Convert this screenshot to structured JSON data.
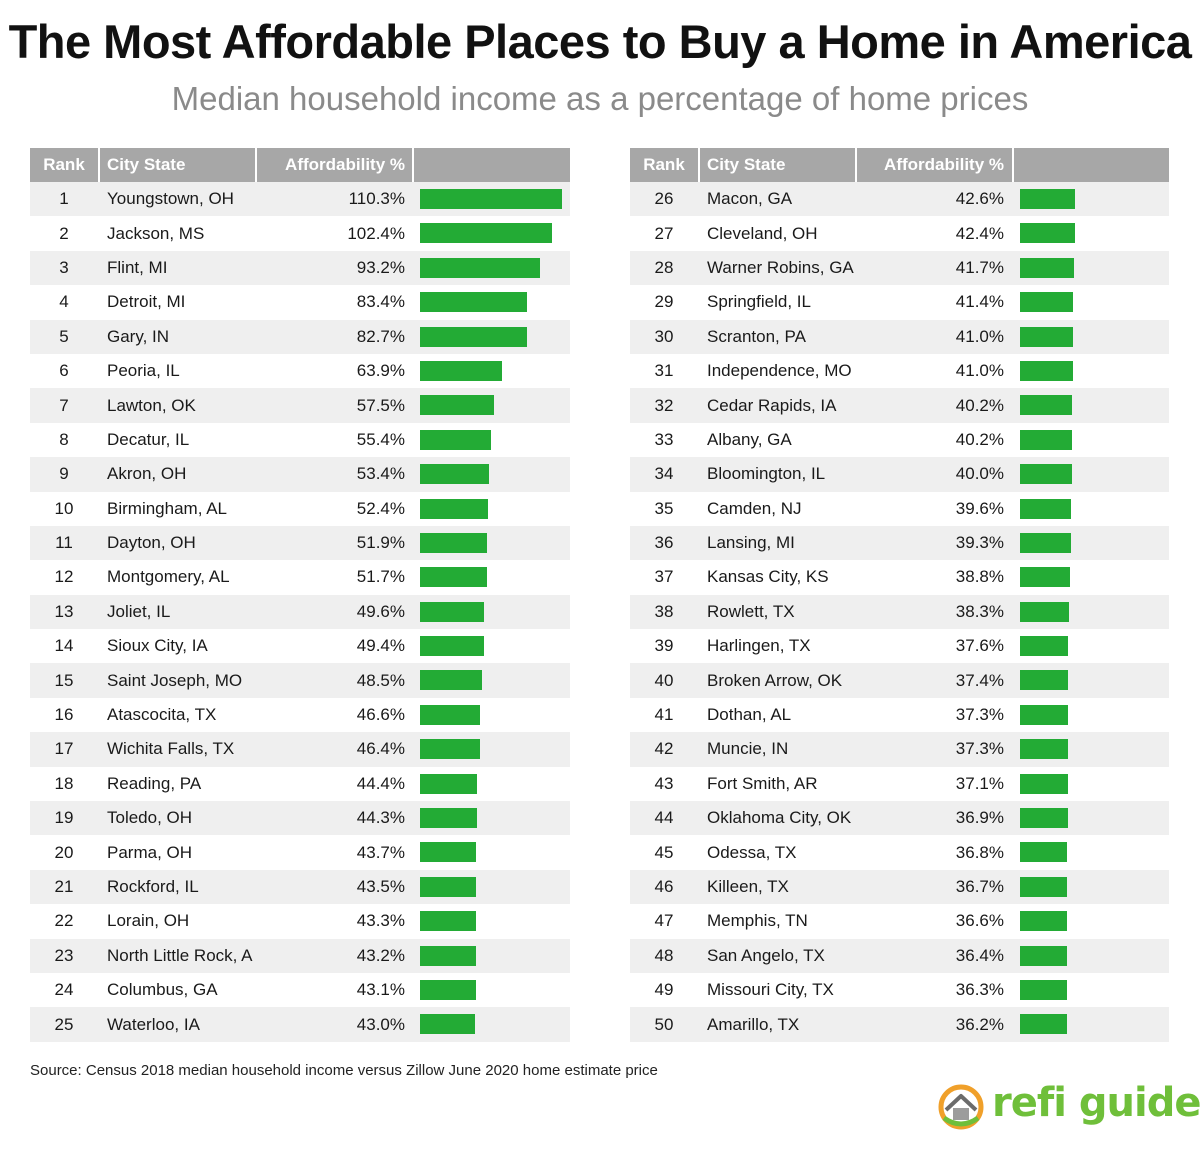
{
  "title": "The Most Affordable Places to Buy a Home in America",
  "subtitle": "Median household income as a percentage of home prices",
  "source": "Source: Census 2018 median household income versus Zillow June 2020 home estimate price",
  "logo_text": "refi guide",
  "colors": {
    "bar": "#23ab35",
    "header": "#a7a7a7",
    "row_alt": "#efefef",
    "logo": "#6fbf3a"
  },
  "chart_data": {
    "type": "bar",
    "title": "The Most Affordable Places to Buy a Home in America",
    "subtitle": "Median household income as a percentage of home prices",
    "columns": [
      "Rank",
      "City State",
      "Affordability %"
    ],
    "x_range": [
      0,
      110.3
    ],
    "rows": [
      {
        "rank": "1",
        "city": "Youngstown, OH",
        "label": "110.3%",
        "value": 110.3
      },
      {
        "rank": "2",
        "city": "Jackson, MS",
        "label": "102.4%",
        "value": 102.4
      },
      {
        "rank": "3",
        "city": "Flint, MI",
        "label": "93.2%",
        "value": 93.2
      },
      {
        "rank": "4",
        "city": "Detroit, MI",
        "label": "83.4%",
        "value": 83.4
      },
      {
        "rank": "5",
        "city": "Gary, IN",
        "label": "82.7%",
        "value": 82.7
      },
      {
        "rank": "6",
        "city": "Peoria, IL",
        "label": "63.9%",
        "value": 63.9
      },
      {
        "rank": "7",
        "city": "Lawton, OK",
        "label": "57.5%",
        "value": 57.5
      },
      {
        "rank": "8",
        "city": "Decatur, IL",
        "label": "55.4%",
        "value": 55.4
      },
      {
        "rank": "9",
        "city": "Akron, OH",
        "label": "53.4%",
        "value": 53.4
      },
      {
        "rank": "10",
        "city": "Birmingham, AL",
        "label": "52.4%",
        "value": 52.4
      },
      {
        "rank": "11",
        "city": "Dayton, OH",
        "label": "51.9%",
        "value": 51.9
      },
      {
        "rank": "12",
        "city": "Montgomery, AL",
        "label": "51.7%",
        "value": 51.7
      },
      {
        "rank": "13",
        "city": "Joliet, IL",
        "label": "49.6%",
        "value": 49.6
      },
      {
        "rank": "14",
        "city": "Sioux City, IA",
        "label": "49.4%",
        "value": 49.4
      },
      {
        "rank": "15",
        "city": "Saint Joseph, MO",
        "label": "48.5%",
        "value": 48.5
      },
      {
        "rank": "16",
        "city": "Atascocita, TX",
        "label": "46.6%",
        "value": 46.6
      },
      {
        "rank": "17",
        "city": "Wichita Falls, TX",
        "label": "46.4%",
        "value": 46.4
      },
      {
        "rank": "18",
        "city": "Reading, PA",
        "label": "44.4%",
        "value": 44.4
      },
      {
        "rank": "19",
        "city": "Toledo, OH",
        "label": "44.3%",
        "value": 44.3
      },
      {
        "rank": "20",
        "city": "Parma, OH",
        "label": "43.7%",
        "value": 43.7
      },
      {
        "rank": "21",
        "city": "Rockford, IL",
        "label": "43.5%",
        "value": 43.5
      },
      {
        "rank": "22",
        "city": "Lorain, OH",
        "label": "43.3%",
        "value": 43.3
      },
      {
        "rank": "23",
        "city": "North Little Rock, A",
        "label": "43.2%",
        "value": 43.2
      },
      {
        "rank": "24",
        "city": "Columbus, GA",
        "label": "43.1%",
        "value": 43.1
      },
      {
        "rank": "25",
        "city": "Waterloo, IA",
        "label": "43.0%",
        "value": 43.0
      },
      {
        "rank": "26",
        "city": "Macon, GA",
        "label": "42.6%",
        "value": 42.6
      },
      {
        "rank": "27",
        "city": "Cleveland, OH",
        "label": "42.4%",
        "value": 42.4
      },
      {
        "rank": "28",
        "city": "Warner Robins, GA",
        "label": "41.7%",
        "value": 41.7
      },
      {
        "rank": "29",
        "city": "Springfield, IL",
        "label": "41.4%",
        "value": 41.4
      },
      {
        "rank": "30",
        "city": "Scranton, PA",
        "label": "41.0%",
        "value": 41.0
      },
      {
        "rank": "31",
        "city": "Independence, MO",
        "label": "41.0%",
        "value": 41.0
      },
      {
        "rank": "32",
        "city": "Cedar Rapids, IA",
        "label": "40.2%",
        "value": 40.2
      },
      {
        "rank": "33",
        "city": "Albany, GA",
        "label": "40.2%",
        "value": 40.2
      },
      {
        "rank": "34",
        "city": "Bloomington, IL",
        "label": "40.0%",
        "value": 40.0
      },
      {
        "rank": "35",
        "city": "Camden, NJ",
        "label": "39.6%",
        "value": 39.6
      },
      {
        "rank": "36",
        "city": "Lansing, MI",
        "label": "39.3%",
        "value": 39.3
      },
      {
        "rank": "37",
        "city": "Kansas City, KS",
        "label": "38.8%",
        "value": 38.8
      },
      {
        "rank": "38",
        "city": "Rowlett, TX",
        "label": "38.3%",
        "value": 38.3
      },
      {
        "rank": "39",
        "city": "Harlingen, TX",
        "label": "37.6%",
        "value": 37.6
      },
      {
        "rank": "40",
        "city": "Broken Arrow, OK",
        "label": "37.4%",
        "value": 37.4
      },
      {
        "rank": "41",
        "city": "Dothan, AL",
        "label": "37.3%",
        "value": 37.3
      },
      {
        "rank": "42",
        "city": "Muncie, IN",
        "label": "37.3%",
        "value": 37.3
      },
      {
        "rank": "43",
        "city": "Fort Smith, AR",
        "label": "37.1%",
        "value": 37.1
      },
      {
        "rank": "44",
        "city": "Oklahoma City, OK",
        "label": "36.9%",
        "value": 36.9
      },
      {
        "rank": "45",
        "city": "Odessa, TX",
        "label": "36.8%",
        "value": 36.8
      },
      {
        "rank": "46",
        "city": "Killeen, TX",
        "label": "36.7%",
        "value": 36.7
      },
      {
        "rank": "47",
        "city": "Memphis, TN",
        "label": "36.6%",
        "value": 36.6
      },
      {
        "rank": "48",
        "city": "San Angelo, TX",
        "label": "36.4%",
        "value": 36.4
      },
      {
        "rank": "49",
        "city": "Missouri City, TX",
        "label": "36.3%",
        "value": 36.3
      },
      {
        "rank": "50",
        "city": "Amarillo, TX",
        "label": "36.2%",
        "value": 36.2
      }
    ]
  }
}
